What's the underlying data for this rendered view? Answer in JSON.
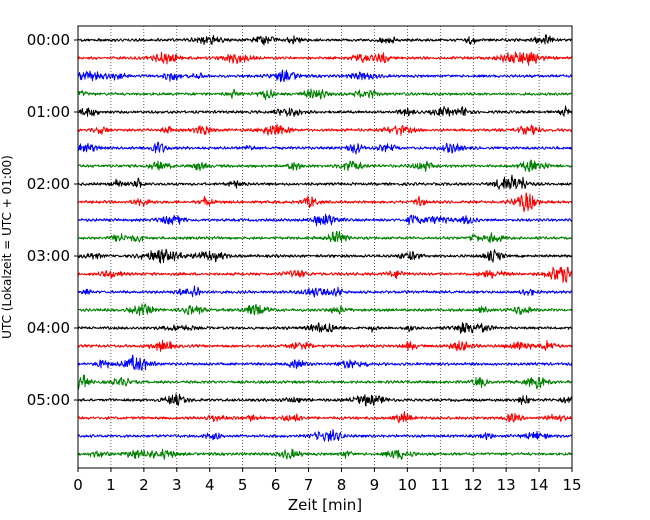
{
  "chart_data": {
    "type": "line",
    "title": "",
    "xlabel": "Zeit  [min]",
    "ylabel": "UTC (Lokalzeit = UTC + 01:00)",
    "xlim": [
      0,
      15
    ],
    "x_ticks": [
      "0",
      "1",
      "2",
      "3",
      "4",
      "5",
      "6",
      "7",
      "8",
      "9",
      "10",
      "11",
      "12",
      "13",
      "14",
      "15"
    ],
    "y_tick_labels": [
      "00:00",
      "01:00",
      "02:00",
      "03:00",
      "04:00",
      "05:00"
    ],
    "trace_interval_minutes": 15,
    "trace_count": 24,
    "color_cycle": [
      "#000000",
      "#ff0000",
      "#0000ff",
      "#008000"
    ],
    "x_grid": "dotted vertical at each minute",
    "legend": "none"
  }
}
